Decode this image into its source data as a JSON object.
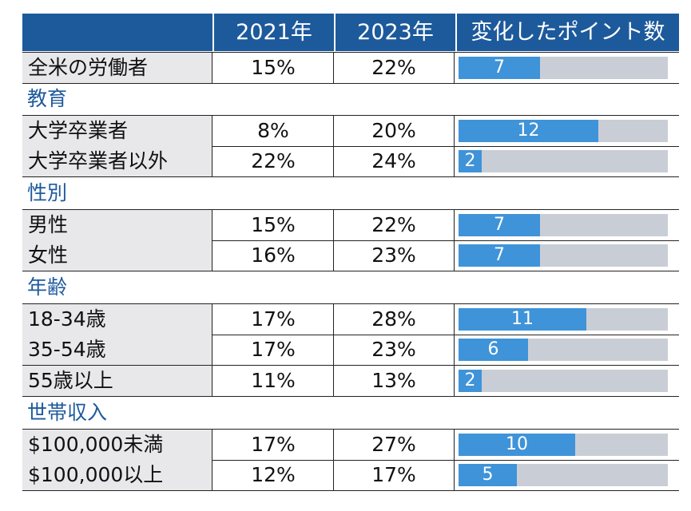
{
  "chart_data": {
    "type": "table",
    "columns": [
      "",
      "2021年",
      "2023年",
      "変化したポイント数"
    ],
    "max_change": 18,
    "rows": [
      {
        "kind": "data",
        "label": "全米の労働者",
        "v2021": "15%",
        "v2023": "22%",
        "change": 7
      },
      {
        "kind": "section",
        "label": "教育"
      },
      {
        "kind": "data",
        "label": "大学卒業者",
        "v2021": "8%",
        "v2023": "20%",
        "change": 12
      },
      {
        "kind": "data",
        "label": "大学卒業者以外",
        "v2021": "22%",
        "v2023": "24%",
        "change": 2
      },
      {
        "kind": "section",
        "label": "性別"
      },
      {
        "kind": "data",
        "label": "男性",
        "v2021": "15%",
        "v2023": "22%",
        "change": 7
      },
      {
        "kind": "data",
        "label": "女性",
        "v2021": "16%",
        "v2023": "23%",
        "change": 7
      },
      {
        "kind": "section",
        "label": "年齢"
      },
      {
        "kind": "data",
        "label": "18-34歳",
        "v2021": "17%",
        "v2023": "28%",
        "change": 11
      },
      {
        "kind": "data",
        "label": "35-54歳",
        "v2021": "17%",
        "v2023": "23%",
        "change": 6
      },
      {
        "kind": "data",
        "label": "55歳以上",
        "v2021": "11%",
        "v2023": "13%",
        "change": 2
      },
      {
        "kind": "section",
        "label": "世帯収入"
      },
      {
        "kind": "data",
        "label": "$100,000未満",
        "v2021": "17%",
        "v2023": "27%",
        "change": 10
      },
      {
        "kind": "data",
        "label": "$100,000以上",
        "v2021": "12%",
        "v2023": "17%",
        "change": 5
      }
    ],
    "colors": {
      "header_bg": "#1d5a9c",
      "section_text": "#1d5a9c",
      "label_bg": "#e8e8ea",
      "bar_fill": "#3f93d8",
      "bar_track": "#c9ced6"
    }
  }
}
